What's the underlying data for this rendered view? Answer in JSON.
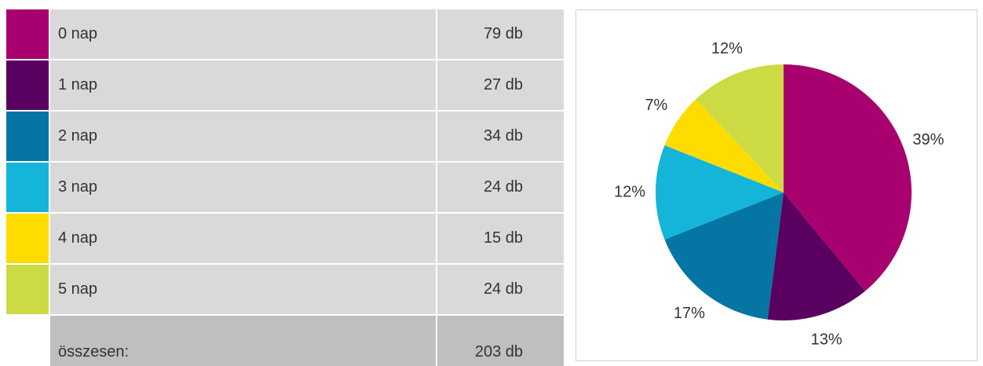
{
  "table": {
    "rows": [
      [
        "0 nap",
        "79 db"
      ],
      [
        "1 nap",
        "27 db"
      ],
      [
        "2 nap",
        "34 db"
      ],
      [
        "3 nap",
        "24 db"
      ],
      [
        "4 nap",
        "15 db"
      ],
      [
        "5 nap",
        "24 db"
      ]
    ],
    "total": [
      "összesen:",
      "203 db"
    ]
  },
  "chart_data": {
    "type": "pie",
    "values": [
      39,
      13,
      17,
      12,
      7,
      12
    ],
    "value_labels": [
      "39%",
      "13%",
      "17%",
      "12%",
      "7%",
      "12%"
    ],
    "colors": [
      "#a8006e",
      "#5a0060",
      "#0576a3",
      "#15b5da",
      "#fedc00",
      "#ccdb44"
    ]
  }
}
